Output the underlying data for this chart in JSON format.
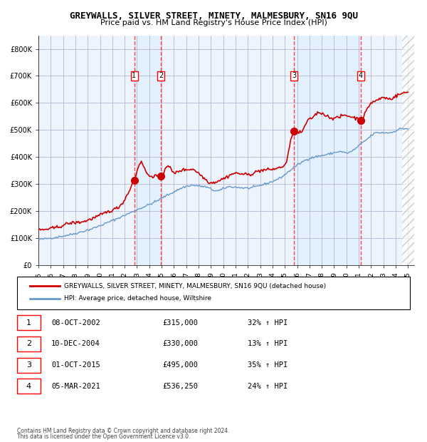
{
  "title": "GREYWALLS, SILVER STREET, MINETY, MALMESBURY, SN16 9QU",
  "subtitle": "Price paid vs. HM Land Registry's House Price Index (HPI)",
  "legend_line1": "GREYWALLS, SILVER STREET, MINETY, MALMESBURY, SN16 9QU (detached house)",
  "legend_line2": "HPI: Average price, detached house, Wiltshire",
  "footer1": "Contains HM Land Registry data © Crown copyright and database right 2024.",
  "footer2": "This data is licensed under the Open Government Licence v3.0.",
  "transactions": [
    {
      "num": 1,
      "date": "08-OCT-2002",
      "price": 315000,
      "pct": "32%",
      "dir": "↑",
      "year": 2002.77
    },
    {
      "num": 2,
      "date": "10-DEC-2004",
      "price": 330000,
      "pct": "13%",
      "dir": "↑",
      "year": 2004.94
    },
    {
      "num": 3,
      "date": "01-OCT-2015",
      "price": 495000,
      "pct": "35%",
      "dir": "↑",
      "year": 2015.75
    },
    {
      "num": 4,
      "date": "05-MAR-2021",
      "price": 536250,
      "pct": "24%",
      "dir": "↑",
      "year": 2021.17
    }
  ],
  "hpi_color": "#6699cc",
  "price_color": "#cc0000",
  "dot_color": "#cc0000",
  "vline_color": "#ff4444",
  "shade_color": "#ddeeff",
  "grid_color": "#aaaacc",
  "bg_color": "#ffffff",
  "hatch_color": "#cccccc",
  "ylim": [
    0,
    850000
  ],
  "yticks": [
    0,
    100000,
    200000,
    300000,
    400000,
    500000,
    600000,
    700000,
    800000
  ],
  "xlim_start": 1995.0,
  "xlim_end": 2025.5,
  "xticks": [
    1995,
    1996,
    1997,
    1998,
    1999,
    2000,
    2001,
    2002,
    2003,
    2004,
    2005,
    2006,
    2007,
    2008,
    2009,
    2010,
    2011,
    2012,
    2013,
    2014,
    2015,
    2016,
    2017,
    2018,
    2019,
    2020,
    2021,
    2022,
    2023,
    2024,
    2025
  ]
}
